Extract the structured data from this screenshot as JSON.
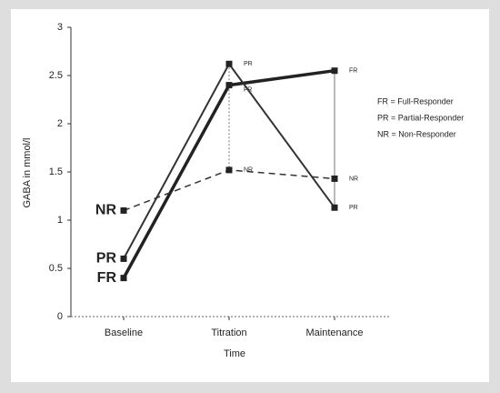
{
  "chart_data": {
    "type": "line",
    "categories": [
      "Baseline",
      "Titration",
      "Maintenance"
    ],
    "series": [
      {
        "name": "FR",
        "color": "#222222",
        "line_width": 3.5,
        "dashed": false,
        "values": [
          0.4,
          2.4,
          2.55
        ]
      },
      {
        "name": "PR",
        "color": "#333333",
        "line_width": 2,
        "dashed": false,
        "values": [
          0.6,
          2.62,
          1.13
        ]
      },
      {
        "name": "NR",
        "color": "#333333",
        "line_width": 1.5,
        "dashed": true,
        "values": [
          1.1,
          1.52,
          1.43
        ]
      }
    ],
    "ylim": [
      0,
      3
    ],
    "yticks": [
      0,
      0.5,
      1,
      1.5,
      2,
      2.5,
      3
    ],
    "y_label": "GABA in mmol/l",
    "x_label": "Time",
    "legend": [
      "FR = Full-Responder",
      "PR = Partial-Responder",
      "NR = Non-Responder"
    ]
  }
}
